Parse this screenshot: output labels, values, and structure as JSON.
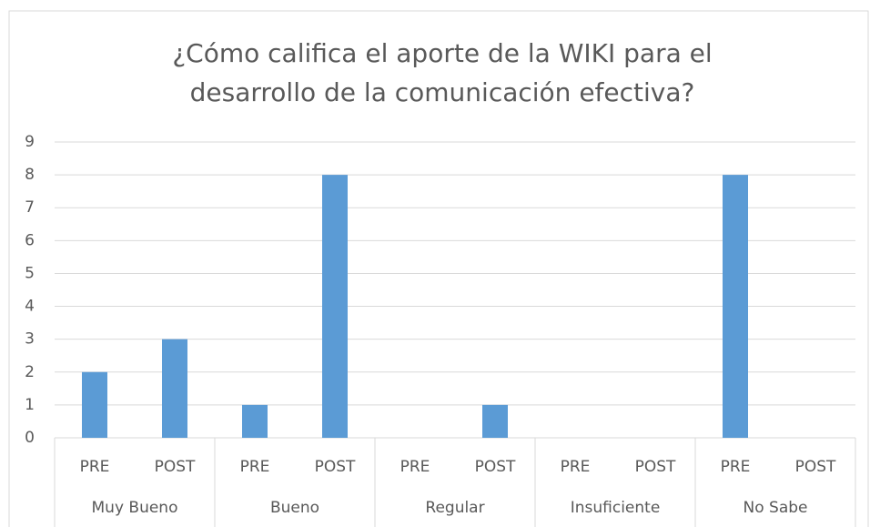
{
  "chart_data": {
    "type": "bar",
    "title": [
      "¿Cómo califica el aporte de la WIKI para el",
      "desarrollo de la comunicación efectiva?"
    ],
    "groups": [
      "Muy Bueno",
      "Bueno",
      "Regular",
      "Insuficiente",
      "No Sabe"
    ],
    "categories": [
      "PRE",
      "POST",
      "PRE",
      "POST",
      "PRE",
      "POST",
      "PRE",
      "POST",
      "PRE",
      "POST"
    ],
    "values": [
      2,
      3,
      1,
      8,
      0,
      1,
      0,
      0,
      8,
      0
    ],
    "color": "#5b9bd5",
    "ylim": [
      0,
      9
    ],
    "yticks": [
      0,
      1,
      2,
      3,
      4,
      5,
      6,
      7,
      8,
      9
    ],
    "grid": true
  }
}
